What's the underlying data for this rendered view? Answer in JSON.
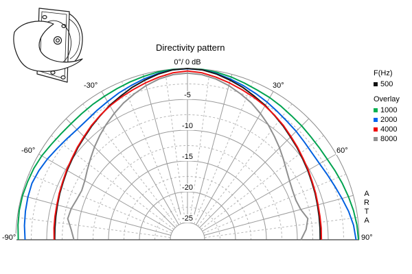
{
  "header": {
    "title": "Directivity pattern"
  },
  "chart_data": {
    "type": "polar-directivity",
    "title": "Directivity pattern",
    "apex_label": "0°/ 0 dB",
    "angle_unit": "deg",
    "angle_range": [
      -90,
      90
    ],
    "radial_unit": "dB",
    "radial_range": [
      0,
      -25
    ],
    "radial_ticks": [
      "-5",
      "-10",
      "-15",
      "-20",
      "-25"
    ],
    "angle_labels": [
      "-90°",
      "-60°",
      "-30°",
      "30°",
      "60°",
      "90°"
    ],
    "grid": {
      "solid_rings_db": [
        0,
        -5,
        -10,
        -15,
        -20,
        -25
      ],
      "dashed_rings_db": [
        -2.5,
        -7.5,
        -12.5,
        -17.5,
        -22.5
      ],
      "solid_spoke_step_deg": 15,
      "dashed_spoke_step_deg": 7.5,
      "solid_color": "#9a9a9a",
      "dashed_color": "#b6b6b6",
      "outer_color": "#8a8a8a",
      "baseline_color": "#3c3c3c"
    },
    "draw_order": [
      "1000",
      "2000",
      "500",
      "4000",
      "8000"
    ],
    "series": [
      {
        "name": "500",
        "color": "#1a1a1a",
        "points": [
          [
            -90,
            -6.3
          ],
          [
            -85,
            -6.25
          ],
          [
            -80,
            -6.15
          ],
          [
            -75,
            -6.0
          ],
          [
            -70,
            -5.8
          ],
          [
            -65,
            -5.6
          ],
          [
            -60,
            -5.3
          ],
          [
            -55,
            -5.0
          ],
          [
            -50,
            -4.6
          ],
          [
            -45,
            -4.2
          ],
          [
            -40,
            -3.7
          ],
          [
            -35,
            -3.2
          ],
          [
            -30,
            -2.6
          ],
          [
            -25,
            -2.1
          ],
          [
            -20,
            -1.5
          ],
          [
            -15,
            -1.0
          ],
          [
            -10,
            -0.5
          ],
          [
            -5,
            -0.12
          ],
          [
            0,
            0
          ],
          [
            5,
            -0.12
          ],
          [
            10,
            -0.5
          ],
          [
            15,
            -1.0
          ],
          [
            20,
            -1.5
          ],
          [
            25,
            -2.1
          ],
          [
            30,
            -2.6
          ],
          [
            35,
            -3.2
          ],
          [
            40,
            -3.7
          ],
          [
            45,
            -4.2
          ],
          [
            50,
            -4.6
          ],
          [
            55,
            -5.0
          ],
          [
            60,
            -5.3
          ],
          [
            65,
            -5.6
          ],
          [
            70,
            -5.8
          ],
          [
            75,
            -6.0
          ],
          [
            80,
            -6.15
          ],
          [
            85,
            -6.25
          ],
          [
            90,
            -6.3
          ]
        ]
      },
      {
        "name": "1000",
        "color": "#00a350",
        "points": [
          [
            -90,
            -0.4
          ],
          [
            -85,
            -0.25
          ],
          [
            -80,
            -0.15
          ],
          [
            -75,
            -0.15
          ],
          [
            -70,
            -0.25
          ],
          [
            -65,
            -0.35
          ],
          [
            -60,
            -0.55
          ],
          [
            -55,
            -0.85
          ],
          [
            -50,
            -1.05
          ],
          [
            -45,
            -1.15
          ],
          [
            -40,
            -1.1
          ],
          [
            -35,
            -1.0
          ],
          [
            -30,
            -0.9
          ],
          [
            -25,
            -0.75
          ],
          [
            -20,
            -0.55
          ],
          [
            -15,
            -0.35
          ],
          [
            -10,
            -0.15
          ],
          [
            -5,
            -0.05
          ],
          [
            0,
            -0.02
          ],
          [
            5,
            -0.05
          ],
          [
            10,
            -0.2
          ],
          [
            15,
            -0.45
          ],
          [
            20,
            -0.75
          ],
          [
            25,
            -1.0
          ],
          [
            30,
            -1.15
          ],
          [
            35,
            -1.35
          ],
          [
            40,
            -1.55
          ],
          [
            45,
            -1.65
          ],
          [
            50,
            -1.75
          ],
          [
            55,
            -1.75
          ],
          [
            60,
            -1.65
          ],
          [
            65,
            -1.4
          ],
          [
            70,
            -1.1
          ],
          [
            75,
            -0.8
          ],
          [
            80,
            -0.5
          ],
          [
            85,
            -0.25
          ],
          [
            90,
            -0.1
          ]
        ]
      },
      {
        "name": "2000",
        "color": "#0060e0",
        "points": [
          [
            -90,
            -1.5
          ],
          [
            -85,
            -1.3
          ],
          [
            -80,
            -1.15
          ],
          [
            -75,
            -1.05
          ],
          [
            -70,
            -1.0
          ],
          [
            -65,
            -1.25
          ],
          [
            -60,
            -1.6
          ],
          [
            -55,
            -2.0
          ],
          [
            -50,
            -2.3
          ],
          [
            -45,
            -2.5
          ],
          [
            -40,
            -2.45
          ],
          [
            -35,
            -2.2
          ],
          [
            -30,
            -1.9
          ],
          [
            -25,
            -1.5
          ],
          [
            -20,
            -1.15
          ],
          [
            -15,
            -0.75
          ],
          [
            -10,
            -0.4
          ],
          [
            -5,
            -0.12
          ],
          [
            0,
            -0.05
          ],
          [
            5,
            -0.12
          ],
          [
            10,
            -0.42
          ],
          [
            15,
            -0.8
          ],
          [
            20,
            -1.2
          ],
          [
            25,
            -1.62
          ],
          [
            30,
            -2.0
          ],
          [
            35,
            -2.4
          ],
          [
            40,
            -2.72
          ],
          [
            45,
            -2.9
          ],
          [
            50,
            -3.1
          ],
          [
            55,
            -3.2
          ],
          [
            60,
            -3.1
          ],
          [
            65,
            -2.8
          ],
          [
            70,
            -2.4
          ],
          [
            75,
            -1.9
          ],
          [
            80,
            -1.3
          ],
          [
            85,
            -0.8
          ],
          [
            90,
            -0.5
          ]
        ]
      },
      {
        "name": "4000",
        "color": "#ee1111",
        "points": [
          [
            -90,
            -6.2
          ],
          [
            -85,
            -6.1
          ],
          [
            -80,
            -6.0
          ],
          [
            -75,
            -5.9
          ],
          [
            -70,
            -5.7
          ],
          [
            -65,
            -5.5
          ],
          [
            -60,
            -5.2
          ],
          [
            -55,
            -4.9
          ],
          [
            -50,
            -4.5
          ],
          [
            -45,
            -4.1
          ],
          [
            -40,
            -3.6
          ],
          [
            -35,
            -3.15
          ],
          [
            -30,
            -2.7
          ],
          [
            -25,
            -2.3
          ],
          [
            -20,
            -1.9
          ],
          [
            -15,
            -1.45
          ],
          [
            -10,
            -1.0
          ],
          [
            -5,
            -0.6
          ],
          [
            0,
            -0.4
          ],
          [
            5,
            -0.6
          ],
          [
            10,
            -1.0
          ],
          [
            15,
            -1.45
          ],
          [
            20,
            -1.9
          ],
          [
            25,
            -2.3
          ],
          [
            30,
            -2.7
          ],
          [
            35,
            -3.15
          ],
          [
            40,
            -3.6
          ],
          [
            45,
            -4.1
          ],
          [
            50,
            -4.5
          ],
          [
            55,
            -4.9
          ],
          [
            60,
            -5.2
          ],
          [
            65,
            -5.5
          ],
          [
            70,
            -5.7
          ],
          [
            75,
            -5.9
          ],
          [
            80,
            -6.0
          ],
          [
            85,
            -6.05
          ],
          [
            90,
            -6.1
          ]
        ]
      },
      {
        "name": "8000",
        "color": "#8f8f8f",
        "points": [
          [
            -90,
            -9.4
          ],
          [
            -85,
            -8.9
          ],
          [
            -80,
            -8.1
          ],
          [
            -75,
            -8.3
          ],
          [
            -70,
            -8.7
          ],
          [
            -65,
            -8.9
          ],
          [
            -60,
            -8.6
          ],
          [
            -55,
            -8.0
          ],
          [
            -50,
            -7.3
          ],
          [
            -45,
            -6.5
          ],
          [
            -40,
            -5.7
          ],
          [
            -35,
            -4.9
          ],
          [
            -30,
            -4.1
          ],
          [
            -25,
            -3.3
          ],
          [
            -20,
            -2.6
          ],
          [
            -15,
            -1.9
          ],
          [
            -10,
            -1.3
          ],
          [
            -5,
            -0.9
          ],
          [
            0,
            -0.75
          ],
          [
            5,
            -0.9
          ],
          [
            10,
            -1.3
          ],
          [
            15,
            -1.9
          ],
          [
            20,
            -2.6
          ],
          [
            25,
            -3.3
          ],
          [
            30,
            -4.15
          ],
          [
            35,
            -5.0
          ],
          [
            40,
            -5.9
          ],
          [
            45,
            -6.7
          ],
          [
            50,
            -7.5
          ],
          [
            55,
            -8.2
          ],
          [
            60,
            -8.7
          ],
          [
            65,
            -9.0
          ],
          [
            70,
            -9.1
          ],
          [
            75,
            -8.8
          ],
          [
            80,
            -8.0
          ],
          [
            85,
            -8.5
          ],
          [
            90,
            -9.4
          ]
        ]
      }
    ]
  },
  "legend": {
    "freq_heading": "F(Hz)",
    "main": {
      "label": "500",
      "color": "#111111"
    },
    "overlay_heading": "Overlay",
    "overlays": [
      {
        "label": "1000",
        "color": "#00b050"
      },
      {
        "label": "2000",
        "color": "#0064f0"
      },
      {
        "label": "4000",
        "color": "#f00000"
      },
      {
        "label": "8000",
        "color": "#909090"
      }
    ]
  },
  "watermark": {
    "letters": [
      "A",
      "R",
      "T",
      "A"
    ]
  }
}
